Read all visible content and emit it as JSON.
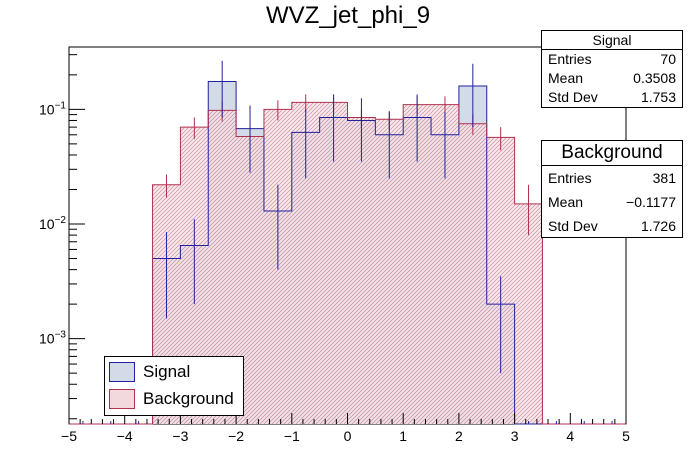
{
  "title": "WVZ_jet_phi_9",
  "colors": {
    "signal_line": "#2020a0",
    "signal_fill": "#d3dbe8",
    "background_line": "#b03050",
    "background_fill": "#f2d9de"
  },
  "stats": {
    "signal": {
      "header": "Signal",
      "rows": [
        {
          "label": "Entries",
          "value": "70"
        },
        {
          "label": "Mean",
          "value": "0.3508"
        },
        {
          "label": "Std Dev",
          "value": "1.753"
        }
      ]
    },
    "background": {
      "header": "Background",
      "rows": [
        {
          "label": "Entries",
          "value": "381"
        },
        {
          "label": "Mean",
          "value": "−0.1177"
        },
        {
          "label": "Std Dev",
          "value": "1.726"
        }
      ]
    }
  },
  "legend": {
    "signal_label": "Signal",
    "background_label": "Background"
  },
  "chart_data": {
    "type": "bar",
    "title": "WVZ_jet_phi_9",
    "xlabel": "",
    "ylabel": "",
    "xlim": [
      -5,
      5
    ],
    "ylim": [
      0.00018,
      0.35
    ],
    "yscale": "log",
    "bin_edges": [
      -5,
      -4.5,
      -4,
      -3.5,
      -3,
      -2.5,
      -2,
      -1.5,
      -1,
      -0.5,
      0,
      0.5,
      1,
      1.5,
      2,
      2.5,
      3,
      3.5,
      4,
      4.5,
      5
    ],
    "x_ticks": [
      -5,
      -4,
      -3,
      -2,
      -1,
      0,
      1,
      2,
      3,
      4,
      5
    ],
    "x_tick_labels": [
      "−5",
      "−4",
      "−3",
      "−2",
      "−1",
      "0",
      "1",
      "2",
      "3",
      "4",
      "5"
    ],
    "y_ticks": [
      0.001,
      0.01,
      0.1
    ],
    "y_tick_bases": [
      "10",
      "10",
      "10"
    ],
    "y_tick_exps": [
      "−3",
      "−2",
      "−1"
    ],
    "series": [
      {
        "name": "Signal",
        "values": [
          0,
          0,
          0,
          0.005,
          0.0065,
          0.175,
          0.068,
          0.013,
          0.063,
          0.085,
          0.08,
          0.06,
          0.085,
          0.06,
          0.16,
          0.002,
          0,
          0,
          0,
          0
        ],
        "errors": [
          0,
          0,
          0,
          0.0035,
          0.0045,
          0.09,
          0.04,
          0.009,
          0.038,
          0.05,
          0.045,
          0.035,
          0.05,
          0.035,
          0.09,
          0.0015,
          0,
          0,
          0,
          0
        ]
      },
      {
        "name": "Background",
        "values": [
          0,
          0,
          0,
          0.022,
          0.07,
          0.098,
          0.058,
          0.1,
          0.115,
          0.115,
          0.085,
          0.082,
          0.11,
          0.11,
          0.075,
          0.057,
          0.015,
          0,
          0,
          0
        ],
        "errors": [
          0,
          0,
          0,
          0.005,
          0.015,
          0.02,
          0.015,
          0.02,
          0.02,
          0.02,
          0.015,
          0.015,
          0.02,
          0.02,
          0.015,
          0.013,
          0.007,
          0,
          0,
          0
        ]
      }
    ],
    "legend_position": "bottom-left",
    "grid": false
  }
}
